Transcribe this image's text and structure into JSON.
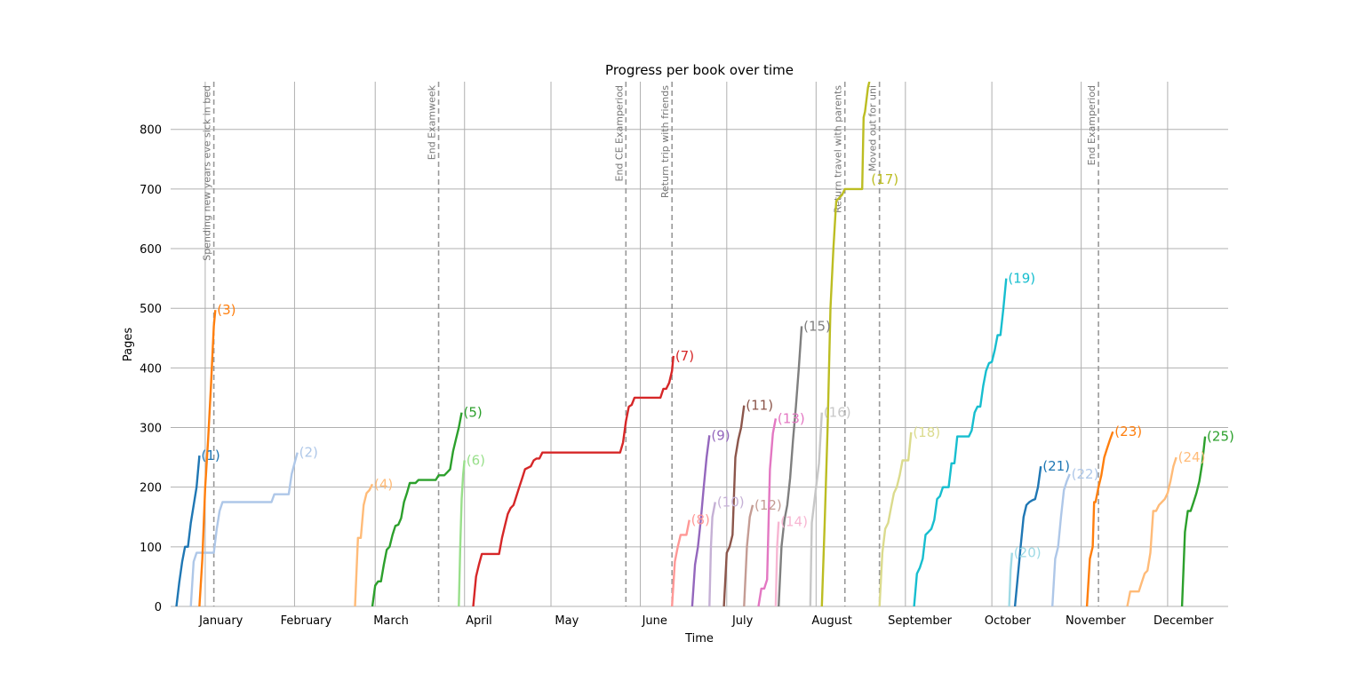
{
  "chart_data": {
    "type": "line",
    "title": "Progress per book over time",
    "xlabel": "Time",
    "ylabel": "Pages",
    "ylim": [
      0,
      880
    ],
    "xlim_day": [
      -12,
      355
    ],
    "grid": true,
    "yticks": [
      0,
      100,
      200,
      300,
      400,
      500,
      600,
      700,
      800
    ],
    "months": [
      {
        "label": "January",
        "day": 0
      },
      {
        "label": "February",
        "day": 31
      },
      {
        "label": "March",
        "day": 59
      },
      {
        "label": "April",
        "day": 90
      },
      {
        "label": "May",
        "day": 120
      },
      {
        "label": "June",
        "day": 151
      },
      {
        "label": "July",
        "day": 181
      },
      {
        "label": "August",
        "day": 212
      },
      {
        "label": "September",
        "day": 243
      },
      {
        "label": "October",
        "day": 273
      },
      {
        "label": "November",
        "day": 304
      },
      {
        "label": "December",
        "day": 334
      }
    ],
    "events": [
      {
        "label": "Spending new years eve sick in bed",
        "day": 3
      },
      {
        "label": "End Examweek",
        "day": 81
      },
      {
        "label": "End CE Examperiod",
        "day": 146
      },
      {
        "label": "Return trip with friends",
        "day": 162
      },
      {
        "label": "Return travel with parents",
        "day": 222
      },
      {
        "label": "Moved out for uni",
        "day": 234
      },
      {
        "label": "End Examperiod",
        "day": 310
      }
    ],
    "series": [
      {
        "name": "(1)",
        "color": "#1f77b4",
        "points": [
          [
            -10,
            0
          ],
          [
            -9,
            40
          ],
          [
            -8,
            75
          ],
          [
            -7,
            100
          ],
          [
            -6,
            100
          ],
          [
            -5,
            140
          ],
          [
            -3,
            200
          ],
          [
            -2,
            253
          ]
        ]
      },
      {
        "name": "(2)",
        "color": "#aec7e8",
        "points": [
          [
            -5,
            0
          ],
          [
            -4,
            75
          ],
          [
            -3,
            90
          ],
          [
            -1,
            90
          ],
          [
            3,
            90
          ],
          [
            4,
            130
          ],
          [
            5,
            160
          ],
          [
            6,
            175
          ],
          [
            11,
            175
          ],
          [
            23,
            175
          ],
          [
            24,
            188
          ],
          [
            29,
            188
          ],
          [
            30,
            222
          ],
          [
            31,
            240
          ],
          [
            32,
            258
          ]
        ]
      },
      {
        "name": "(3)",
        "color": "#ff7f0e",
        "points": [
          [
            -2,
            0
          ],
          [
            -1,
            80
          ],
          [
            0,
            200
          ],
          [
            1,
            280
          ],
          [
            2,
            370
          ],
          [
            3,
            470
          ],
          [
            3.5,
            497
          ]
        ]
      },
      {
        "name": "(4)",
        "color": "#ffbb78",
        "points": [
          [
            52,
            0
          ],
          [
            53,
            115
          ],
          [
            54,
            115
          ],
          [
            55,
            170
          ],
          [
            56,
            190
          ],
          [
            57,
            195
          ],
          [
            58,
            205
          ]
        ]
      },
      {
        "name": "(5)",
        "color": "#2ca02c",
        "points": [
          [
            58,
            0
          ],
          [
            59,
            35
          ],
          [
            60,
            42
          ],
          [
            61,
            42
          ],
          [
            62,
            70
          ],
          [
            63,
            95
          ],
          [
            64,
            100
          ],
          [
            65,
            120
          ],
          [
            66,
            135
          ],
          [
            67,
            137
          ],
          [
            68,
            148
          ],
          [
            69,
            175
          ],
          [
            70,
            190
          ],
          [
            71,
            207
          ],
          [
            73,
            207
          ],
          [
            74,
            212
          ],
          [
            79,
            212
          ],
          [
            80,
            212
          ],
          [
            81,
            220
          ],
          [
            83,
            220
          ],
          [
            84,
            225
          ],
          [
            85,
            230
          ],
          [
            86,
            260
          ],
          [
            87,
            280
          ],
          [
            88,
            300
          ],
          [
            89,
            325
          ]
        ]
      },
      {
        "name": "(6)",
        "color": "#98df8a",
        "points": [
          [
            88,
            0
          ],
          [
            88.5,
            100
          ],
          [
            89,
            180
          ],
          [
            89.5,
            220
          ],
          [
            90,
            245
          ]
        ]
      },
      {
        "name": "(7)",
        "color": "#d62728",
        "points": [
          [
            93,
            0
          ],
          [
            94,
            50
          ],
          [
            95,
            70
          ],
          [
            96,
            88
          ],
          [
            102,
            88
          ],
          [
            103,
            115
          ],
          [
            104,
            135
          ],
          [
            105,
            155
          ],
          [
            106,
            165
          ],
          [
            107,
            170
          ],
          [
            108,
            185
          ],
          [
            109,
            200
          ],
          [
            110,
            215
          ],
          [
            111,
            230
          ],
          [
            113,
            235
          ],
          [
            114,
            245
          ],
          [
            115,
            248
          ],
          [
            116,
            248
          ],
          [
            117,
            258
          ],
          [
            144,
            258
          ],
          [
            145,
            275
          ],
          [
            146,
            310
          ],
          [
            147,
            335
          ],
          [
            148,
            338
          ],
          [
            149,
            350
          ],
          [
            158,
            350
          ],
          [
            159,
            365
          ],
          [
            160,
            365
          ],
          [
            161,
            375
          ],
          [
            162,
            395
          ],
          [
            162.5,
            420
          ]
        ]
      },
      {
        "name": "(8)",
        "color": "#ff9896",
        "points": [
          [
            162,
            0
          ],
          [
            163,
            75
          ],
          [
            164,
            100
          ],
          [
            165,
            120
          ],
          [
            167,
            120
          ],
          [
            168,
            145
          ]
        ]
      },
      {
        "name": "(9)",
        "color": "#9467bd",
        "points": [
          [
            169,
            0
          ],
          [
            170,
            70
          ],
          [
            171,
            100
          ],
          [
            172,
            145
          ],
          [
            173,
            200
          ],
          [
            174,
            250
          ],
          [
            175,
            287
          ]
        ]
      },
      {
        "name": "(10)",
        "color": "#c5b0d5",
        "points": [
          [
            175,
            0
          ],
          [
            175.5,
            100
          ],
          [
            176,
            150
          ],
          [
            177,
            175
          ]
        ]
      },
      {
        "name": "(11)",
        "color": "#8c564b",
        "points": [
          [
            180,
            0
          ],
          [
            181,
            90
          ],
          [
            182,
            100
          ],
          [
            183,
            120
          ],
          [
            184,
            250
          ],
          [
            185,
            280
          ],
          [
            186,
            300
          ],
          [
            187,
            337
          ]
        ]
      },
      {
        "name": "(12)",
        "color": "#c49c94",
        "points": [
          [
            187,
            0
          ],
          [
            188,
            100
          ],
          [
            189,
            150
          ],
          [
            190,
            170
          ]
        ]
      },
      {
        "name": "(13)",
        "color": "#e377c2",
        "points": [
          [
            192,
            0
          ],
          [
            193,
            30
          ],
          [
            194,
            30
          ],
          [
            195,
            45
          ],
          [
            196,
            230
          ],
          [
            197,
            290
          ],
          [
            198,
            315
          ]
        ]
      },
      {
        "name": "(14)",
        "color": "#f7b6d2",
        "points": [
          [
            198,
            0
          ],
          [
            198.5,
            100
          ],
          [
            199,
            142
          ]
        ]
      },
      {
        "name": "(15)",
        "color": "#7f7f7f",
        "points": [
          [
            199,
            0
          ],
          [
            200,
            100
          ],
          [
            201,
            145
          ],
          [
            202,
            170
          ],
          [
            203,
            215
          ],
          [
            204,
            280
          ],
          [
            205,
            335
          ],
          [
            206,
            400
          ],
          [
            207,
            470
          ]
        ]
      },
      {
        "name": "(16)",
        "color": "#c7c7c7",
        "points": [
          [
            210,
            0
          ],
          [
            210.5,
            140
          ],
          [
            211,
            160
          ],
          [
            212,
            200
          ],
          [
            213,
            240
          ],
          [
            214,
            325
          ]
        ]
      },
      {
        "name": "(17)",
        "color": "#bcbd22",
        "points": [
          [
            214,
            0
          ],
          [
            215,
            140
          ],
          [
            216,
            300
          ],
          [
            217,
            500
          ],
          [
            218,
            600
          ],
          [
            219,
            680
          ],
          [
            221,
            690
          ],
          [
            222,
            700
          ],
          [
            228,
            700
          ],
          [
            228.5,
            820
          ],
          [
            229,
            830
          ],
          [
            230,
            870
          ],
          [
            230.5,
            880
          ]
        ]
      },
      {
        "name": "(18)",
        "color": "#dbdb8d",
        "points": [
          [
            234,
            0
          ],
          [
            235,
            90
          ],
          [
            236,
            130
          ],
          [
            237,
            140
          ],
          [
            238,
            165
          ],
          [
            239,
            190
          ],
          [
            240,
            200
          ],
          [
            241,
            220
          ],
          [
            242,
            245
          ],
          [
            244,
            245
          ],
          [
            245,
            292
          ]
        ]
      },
      {
        "name": "(19)",
        "color": "#17becf",
        "points": [
          [
            246,
            0
          ],
          [
            247,
            55
          ],
          [
            248,
            65
          ],
          [
            249,
            80
          ],
          [
            250,
            120
          ],
          [
            251,
            125
          ],
          [
            252,
            130
          ],
          [
            253,
            145
          ],
          [
            254,
            180
          ],
          [
            255,
            185
          ],
          [
            256,
            200
          ],
          [
            258,
            200
          ],
          [
            259,
            240
          ],
          [
            260,
            240
          ],
          [
            261,
            285
          ],
          [
            265,
            285
          ],
          [
            266,
            295
          ],
          [
            267,
            325
          ],
          [
            268,
            335
          ],
          [
            269,
            335
          ],
          [
            270,
            370
          ],
          [
            271,
            395
          ],
          [
            272,
            408
          ],
          [
            273,
            410
          ],
          [
            274,
            430
          ],
          [
            275,
            455
          ],
          [
            276,
            455
          ],
          [
            277,
            500
          ],
          [
            278,
            550
          ]
        ]
      },
      {
        "name": "(20)",
        "color": "#9edae5",
        "points": [
          [
            279,
            0
          ],
          [
            279.5,
            60
          ],
          [
            280,
            90
          ]
        ]
      },
      {
        "name": "(21)",
        "color": "#1f77b4",
        "points": [
          [
            281,
            0
          ],
          [
            283,
            100
          ],
          [
            284,
            150
          ],
          [
            285,
            170
          ],
          [
            286,
            175
          ],
          [
            287,
            178
          ],
          [
            288,
            180
          ],
          [
            289,
            200
          ],
          [
            290,
            235
          ]
        ]
      },
      {
        "name": "(22)",
        "color": "#aec7e8",
        "points": [
          [
            294,
            0
          ],
          [
            295,
            80
          ],
          [
            296,
            100
          ],
          [
            297,
            150
          ],
          [
            298,
            195
          ],
          [
            299,
            210
          ],
          [
            300,
            222
          ]
        ]
      },
      {
        "name": "(23)",
        "color": "#ff7f0e",
        "points": [
          [
            306,
            0
          ],
          [
            307,
            80
          ],
          [
            308,
            100
          ],
          [
            308.5,
            175
          ],
          [
            309,
            175
          ],
          [
            310,
            200
          ],
          [
            311,
            220
          ],
          [
            312,
            250
          ],
          [
            313,
            265
          ],
          [
            314,
            280
          ],
          [
            315,
            293
          ]
        ]
      },
      {
        "name": "(24)",
        "color": "#ffbb78",
        "points": [
          [
            320,
            0
          ],
          [
            321,
            25
          ],
          [
            324,
            25
          ],
          [
            325,
            40
          ],
          [
            326,
            55
          ],
          [
            327,
            60
          ],
          [
            328,
            90
          ],
          [
            329,
            160
          ],
          [
            330,
            160
          ],
          [
            331,
            170
          ],
          [
            332,
            175
          ],
          [
            333,
            180
          ],
          [
            334,
            190
          ],
          [
            335,
            210
          ],
          [
            336,
            235
          ],
          [
            337,
            250
          ]
        ]
      },
      {
        "name": "(25)",
        "color": "#2ca02c",
        "points": [
          [
            339,
            0
          ],
          [
            340,
            125
          ],
          [
            341,
            160
          ],
          [
            342,
            160
          ],
          [
            343,
            175
          ],
          [
            344,
            190
          ],
          [
            345,
            210
          ],
          [
            346,
            240
          ],
          [
            347,
            285
          ]
        ]
      }
    ]
  }
}
